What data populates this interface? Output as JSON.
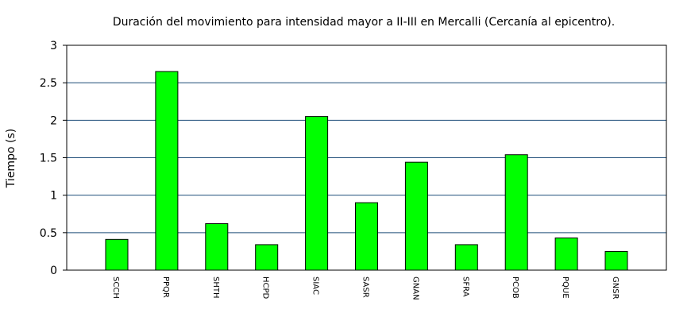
{
  "chart_data": {
    "type": "bar",
    "title": "Duración del movimiento para intensidad mayor a II-III en Mercalli (Cercanía al epicentro).",
    "xlabel": "",
    "ylabel": "Tiempo (s)",
    "categories": [
      "SCCH",
      "PPQR",
      "SHTH",
      "HCPD",
      "SIAC",
      "SASR",
      "GNAN",
      "SFRA",
      "PCOB",
      "PQUE",
      "GNSR"
    ],
    "values": [
      0.41,
      2.65,
      0.62,
      0.34,
      2.05,
      0.9,
      1.44,
      0.34,
      1.54,
      0.43,
      0.25
    ],
    "ylim": [
      0,
      3
    ],
    "yticks": [
      0,
      0.5,
      1,
      1.5,
      2,
      2.5,
      3
    ],
    "ytick_labels": [
      "0",
      "0.5",
      "1",
      "1.5",
      "2",
      "2.5",
      "3"
    ],
    "grid": true,
    "colors": {
      "bar_fill": "#00ff00",
      "bar_stroke": "#000000",
      "grid": "#1f4e79",
      "axis": "#000000"
    }
  }
}
